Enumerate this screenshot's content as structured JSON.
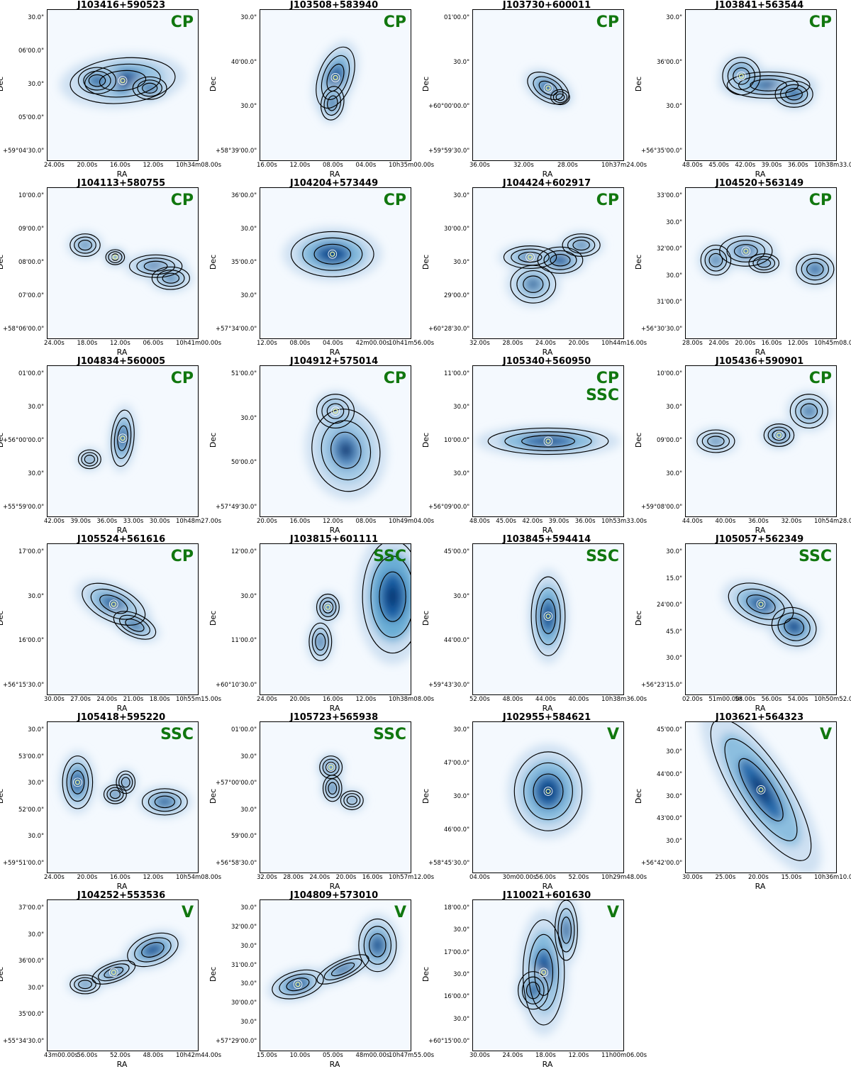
{
  "axis_labels": {
    "x": "RA",
    "y": "Dec"
  },
  "colors": {
    "classification": "#11770f",
    "map_dark": "#08306b",
    "map_light": "#f4f9fe",
    "contour": "#000000"
  },
  "panels": [
    {
      "title": "J103416+590523",
      "label": [
        "CP"
      ],
      "yticks": [
        "30.0\"",
        "06'00.0\"",
        "30.0\"",
        "05'00.0\"",
        "+59°04'30.0\""
      ],
      "xticks": [
        "24.00s",
        "20.00s",
        "16.00s",
        "12.00s",
        "10h34m08.00s"
      ]
    },
    {
      "title": "J103508+583940",
      "label": [
        "CP"
      ],
      "yticks": [
        "30.0\"",
        "40'00.0\"",
        "30.0\"",
        "+58°39'00.0\""
      ],
      "xticks": [
        "16.00s",
        "12.00s",
        "08.00s",
        "04.00s",
        "10h35m00.00s"
      ]
    },
    {
      "title": "J103730+600011",
      "label": [
        "CP"
      ],
      "yticks": [
        "01'00.0\"",
        "30.0\"",
        "+60°00'00.0\"",
        "+59°59'30.0\""
      ],
      "xticks": [
        "36.00s",
        "32.00s",
        "28.00s",
        "10h37m24.00s"
      ]
    },
    {
      "title": "J103841+563544",
      "label": [
        "CP"
      ],
      "yticks": [
        "30.0\"",
        "36'00.0\"",
        "30.0\"",
        "+56°35'00.0\""
      ],
      "xticks": [
        "48.00s",
        "45.00s",
        "42.00s",
        "39.00s",
        "36.00s",
        "10h38m33.00s"
      ]
    },
    {
      "title": "J104113+580755",
      "label": [
        "CP"
      ],
      "yticks": [
        "10'00.0\"",
        "09'00.0\"",
        "08'00.0\"",
        "07'00.0\"",
        "+58°06'00.0\""
      ],
      "xticks": [
        "24.00s",
        "18.00s",
        "12.00s",
        "06.00s",
        "10h41m00.00s"
      ]
    },
    {
      "title": "J104204+573449",
      "label": [
        "CP"
      ],
      "yticks": [
        "36'00.0\"",
        "30.0\"",
        "35'00.0\"",
        "30.0\"",
        "+57°34'00.0\""
      ],
      "xticks": [
        "12.00s",
        "08.00s",
        "04.00s",
        "42m00.00s",
        "10h41m56.00s"
      ]
    },
    {
      "title": "J104424+602917",
      "label": [
        "CP"
      ],
      "yticks": [
        "30.0\"",
        "30'00.0\"",
        "30.0\"",
        "29'00.0\"",
        "+60°28'30.0\""
      ],
      "xticks": [
        "32.00s",
        "28.00s",
        "24.00s",
        "20.00s",
        "10h44m16.00s"
      ]
    },
    {
      "title": "J104520+563149",
      "label": [
        "CP"
      ],
      "yticks": [
        "33'00.0\"",
        "30.0\"",
        "32'00.0\"",
        "30.0\"",
        "31'00.0\"",
        "+56°30'30.0\""
      ],
      "xticks": [
        "28.00s",
        "24.00s",
        "20.00s",
        "16.00s",
        "12.00s",
        "10h45m08.00s"
      ]
    },
    {
      "title": "J104834+560005",
      "label": [
        "CP"
      ],
      "yticks": [
        "01'00.0\"",
        "30.0\"",
        "+56°00'00.0\"",
        "30.0\"",
        "+55°59'00.0\""
      ],
      "xticks": [
        "42.00s",
        "39.00s",
        "36.00s",
        "33.00s",
        "30.00s",
        "10h48m27.00s"
      ]
    },
    {
      "title": "J104912+575014",
      "label": [
        "CP"
      ],
      "yticks": [
        "51'00.0\"",
        "30.0\"",
        "50'00.0\"",
        "+57°49'30.0\""
      ],
      "xticks": [
        "20.00s",
        "16.00s",
        "12.00s",
        "08.00s",
        "10h49m04.00s"
      ]
    },
    {
      "title": "J105340+560950",
      "label": [
        "CP",
        "SSC"
      ],
      "yticks": [
        "11'00.0\"",
        "30.0\"",
        "10'00.0\"",
        "30.0\"",
        "+56°09'00.0\""
      ],
      "xticks": [
        "48.00s",
        "45.00s",
        "42.00s",
        "39.00s",
        "36.00s",
        "10h53m33.00s"
      ]
    },
    {
      "title": "J105436+590901",
      "label": [
        "CP"
      ],
      "yticks": [
        "10'00.0\"",
        "30.0\"",
        "09'00.0\"",
        "30.0\"",
        "+59°08'00.0\""
      ],
      "xticks": [
        "44.00s",
        "40.00s",
        "36.00s",
        "32.00s",
        "10h54m28.00s"
      ]
    },
    {
      "title": "J105524+561616",
      "label": [
        "CP"
      ],
      "yticks": [
        "17'00.0\"",
        "30.0\"",
        "16'00.0\"",
        "+56°15'30.0\""
      ],
      "xticks": [
        "30.00s",
        "27.00s",
        "24.00s",
        "21.00s",
        "18.00s",
        "10h55m15.00s"
      ]
    },
    {
      "title": "J103815+601111",
      "label": [
        "SSC"
      ],
      "yticks": [
        "12'00.0\"",
        "30.0\"",
        "11'00.0\"",
        "+60°10'30.0\""
      ],
      "xticks": [
        "24.00s",
        "20.00s",
        "16.00s",
        "12.00s",
        "10h38m08.00s"
      ]
    },
    {
      "title": "J103845+594414",
      "label": [
        "SSC"
      ],
      "yticks": [
        "45'00.0\"",
        "30.0\"",
        "44'00.0\"",
        "+59°43'30.0\""
      ],
      "xticks": [
        "52.00s",
        "48.00s",
        "44.00s",
        "40.00s",
        "10h38m36.00s"
      ]
    },
    {
      "title": "J105057+562349",
      "label": [
        "SSC"
      ],
      "yticks": [
        "30.0\"",
        "15.0\"",
        "24'00.0\"",
        "45.0\"",
        "30.0\"",
        "+56°23'15.0\""
      ],
      "xticks": [
        "02.00s",
        "51m00.00s",
        "58.00s",
        "56.00s",
        "54.00s",
        "10h50m52.00s"
      ]
    },
    {
      "title": "J105418+595220",
      "label": [
        "SSC"
      ],
      "yticks": [
        "30.0\"",
        "53'00.0\"",
        "30.0\"",
        "52'00.0\"",
        "30.0\"",
        "+59°51'00.0\""
      ],
      "xticks": [
        "24.00s",
        "20.00s",
        "16.00s",
        "12.00s",
        "10h54m08.00s"
      ]
    },
    {
      "title": "J105723+565938",
      "label": [
        "SSC"
      ],
      "yticks": [
        "01'00.0\"",
        "30.0\"",
        "+57°00'00.0\"",
        "30.0\"",
        "59'00.0\"",
        "+56°58'30.0\""
      ],
      "xticks": [
        "32.00s",
        "28.00s",
        "24.00s",
        "20.00s",
        "16.00s",
        "10h57m12.00s"
      ]
    },
    {
      "title": "J102955+584621",
      "label": [
        "V"
      ],
      "yticks": [
        "30.0\"",
        "47'00.0\"",
        "30.0\"",
        "46'00.0\"",
        "+58°45'30.0\""
      ],
      "xticks": [
        "04.00s",
        "30m00.00s",
        "56.00s",
        "52.00s",
        "10h29m48.00s"
      ]
    },
    {
      "title": "J103621+564323",
      "label": [
        "V"
      ],
      "yticks": [
        "45'00.0\"",
        "30.0\"",
        "44'00.0\"",
        "30.0\"",
        "43'00.0\"",
        "30.0\"",
        "+56°42'00.0\""
      ],
      "xticks": [
        "30.00s",
        "25.00s",
        "20.00s",
        "15.00s",
        "10h36m10.00s"
      ]
    },
    {
      "title": "J104252+553536",
      "label": [
        "V"
      ],
      "yticks": [
        "37'00.0\"",
        "30.0\"",
        "36'00.0\"",
        "30.0\"",
        "35'00.0\"",
        "+55°34'30.0\""
      ],
      "xticks": [
        "43m00.00s",
        "56.00s",
        "52.00s",
        "48.00s",
        "10h42m44.00s"
      ]
    },
    {
      "title": "J104809+573010",
      "label": [
        "V"
      ],
      "yticks": [
        "30.0\"",
        "32'00.0\"",
        "30.0\"",
        "31'00.0\"",
        "30.0\"",
        "30'00.0\"",
        "30.0\"",
        "+57°29'00.0\""
      ],
      "xticks": [
        "15.00s",
        "10.00s",
        "05.00s",
        "48m00.00s",
        "10h47m55.00s"
      ]
    },
    {
      "title": "J110021+601630",
      "label": [
        "V"
      ],
      "yticks": [
        "18'00.0\"",
        "30.0\"",
        "17'00.0\"",
        "30.0\"",
        "16'00.0\"",
        "30.0\"",
        "+60°15'00.0\""
      ],
      "xticks": [
        "30.00s",
        "24.00s",
        "18.00s",
        "12.00s",
        "11h00m06.00s"
      ]
    }
  ]
}
